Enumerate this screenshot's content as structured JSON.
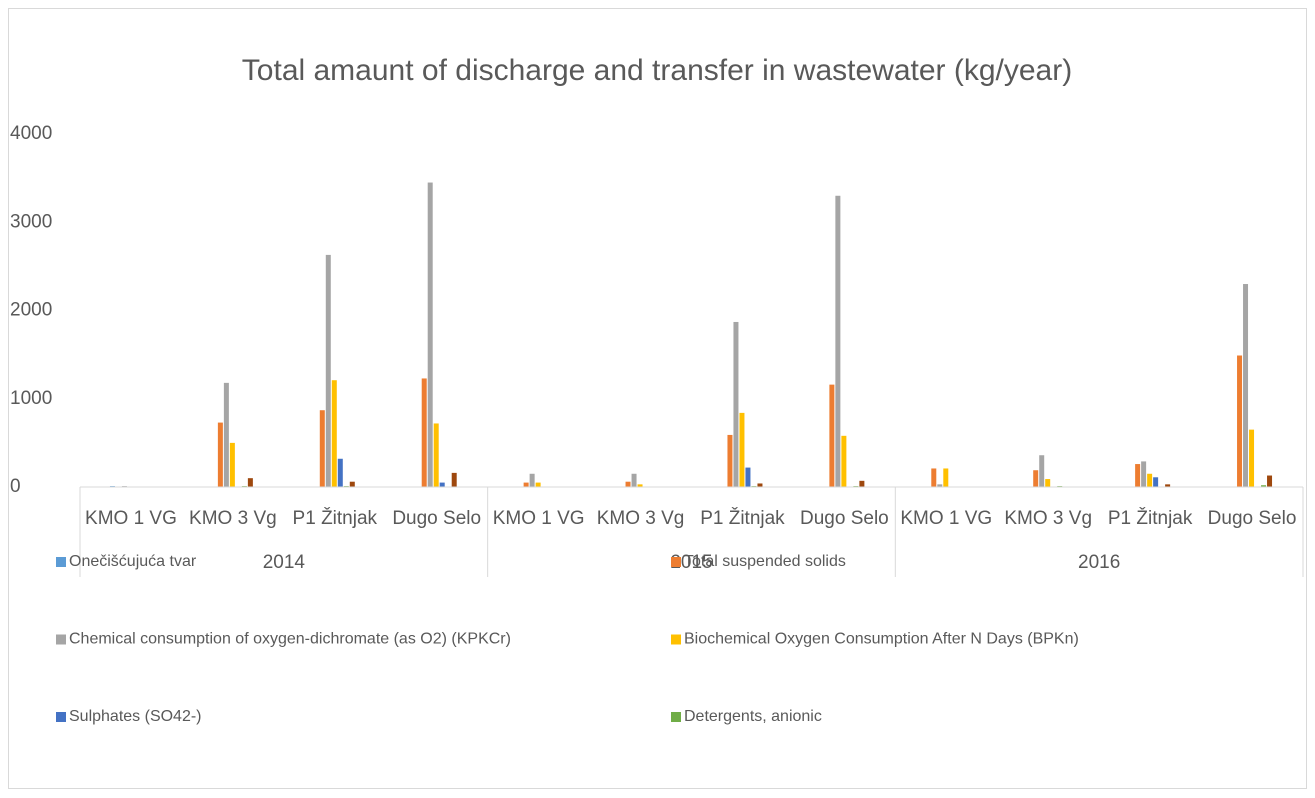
{
  "chart_data": {
    "type": "bar",
    "title": "Total amaunt of discharge and  transfer in wastewater   (kg/year)",
    "categories": [
      "KMO 1 VG",
      "KMO 3 Vg",
      "P1 Žitnjak",
      "Dugo Selo",
      "KMO 1 VG",
      "KMO 3 Vg",
      "P1 Žitnjak",
      "Dugo Selo",
      "KMO 1 VG",
      "KMO 3 Vg",
      "P1 Žitnjak",
      "Dugo Selo"
    ],
    "groups": [
      "2014",
      "2015",
      "2016"
    ],
    "series": [
      {
        "name": "Onečišćujuća tvar",
        "color": "#5b9bd5",
        "values": [
          10,
          0,
          0,
          0,
          0,
          0,
          0,
          0,
          0,
          0,
          0,
          0
        ]
      },
      {
        "name": "Total suspended solids",
        "color": "#ed7d31",
        "values": [
          0,
          730,
          870,
          1230,
          50,
          60,
          590,
          1160,
          210,
          190,
          260,
          1490
        ]
      },
      {
        "name": "Chemical consumption of oxygen-dichromate (as O2) (KPKCr)",
        "color": "#a5a5a5",
        "values": [
          10,
          1180,
          2630,
          3450,
          150,
          150,
          1870,
          3300,
          30,
          360,
          290,
          2300
        ]
      },
      {
        "name": "Biochemical Oxygen Consumption After N Days (BPKn)",
        "color": "#ffc000",
        "values": [
          0,
          500,
          1210,
          720,
          50,
          30,
          840,
          580,
          210,
          90,
          150,
          650
        ]
      },
      {
        "name": "Sulphates (SO42-)",
        "color": "#4472c4",
        "values": [
          0,
          0,
          320,
          50,
          0,
          0,
          220,
          0,
          0,
          0,
          110,
          0
        ]
      },
      {
        "name": "Detergents, anionic",
        "color": "#70ad47",
        "values": [
          0,
          10,
          10,
          0,
          0,
          0,
          10,
          10,
          0,
          10,
          0,
          20
        ]
      },
      {
        "name": null,
        "color": "#9e480e",
        "values": [
          0,
          100,
          60,
          160,
          0,
          0,
          40,
          70,
          0,
          0,
          30,
          130
        ]
      }
    ],
    "ylim": [
      0,
      4000
    ],
    "yticks": [
      0,
      1000,
      2000,
      3000,
      4000
    ],
    "grid": false
  }
}
